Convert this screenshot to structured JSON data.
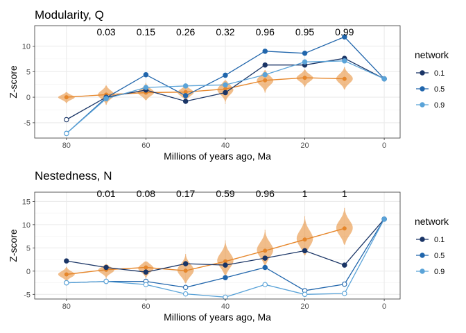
{
  "chart_data": [
    {
      "type": "line",
      "title": "Modularity, Q",
      "xlabel": "Millions of years ago, Ma",
      "ylabel": "Z-score",
      "xlim": [
        88,
        -4
      ],
      "ylim": [
        -8,
        14
      ],
      "xticks": [
        80,
        60,
        40,
        20,
        0
      ],
      "yticks": [
        -5,
        0,
        5,
        10
      ],
      "grid": true,
      "legend_position": "right",
      "legend_title": "network",
      "series": [
        {
          "name": "0.1",
          "color": "#1a3566",
          "x": [
            80,
            70,
            60,
            50,
            40,
            30,
            20,
            10,
            0
          ],
          "y": [
            -4.4,
            0.0,
            1.4,
            -0.8,
            0.9,
            6.3,
            6.3,
            7.6,
            3.6
          ],
          "hollow": [
            true,
            false,
            false,
            false,
            false,
            false,
            false,
            false,
            false
          ]
        },
        {
          "name": "0.5",
          "color": "#2166ac",
          "x": [
            80,
            70,
            60,
            50,
            40,
            30,
            20,
            10,
            0
          ],
          "y": [
            -7.1,
            -0.1,
            4.4,
            0.3,
            4.3,
            9.0,
            8.6,
            11.8,
            3.6
          ],
          "hollow": [
            true,
            false,
            false,
            false,
            false,
            false,
            false,
            false,
            false
          ]
        },
        {
          "name": "0.9",
          "color": "#5aa3d8",
          "x": [
            80,
            70,
            60,
            50,
            40,
            30,
            20,
            10,
            0
          ],
          "y": [
            -7.1,
            -0.3,
            1.9,
            2.2,
            2.4,
            4.4,
            6.9,
            7.1,
            3.6
          ],
          "hollow": [
            true,
            false,
            false,
            false,
            false,
            false,
            false,
            false,
            false
          ]
        }
      ],
      "null_model": {
        "color": "#e6862a",
        "x": [
          80,
          70,
          60,
          50,
          40,
          30,
          20,
          10
        ],
        "median": [
          0.0,
          0.5,
          0.9,
          1.0,
          1.6,
          3.3,
          3.8,
          3.6
        ],
        "min": [
          -1.2,
          -1.5,
          -0.6,
          -1.0,
          -1.3,
          0.9,
          2.0,
          1.5
        ],
        "max": [
          1.0,
          2.3,
          2.8,
          2.3,
          3.3,
          5.3,
          5.4,
          5.9
        ]
      },
      "annotations": {
        "x": [
          70,
          60,
          50,
          40,
          30,
          20,
          10
        ],
        "labels": [
          "0.03",
          "0.15",
          "0.26",
          "0.32",
          "0.96",
          "0.95",
          "0.99"
        ]
      }
    },
    {
      "type": "line",
      "title": "Nestedness, N",
      "xlabel": "Millions of years ago, Ma",
      "ylabel": "Z-score",
      "xlim": [
        88,
        -4
      ],
      "ylim": [
        -6,
        17
      ],
      "xticks": [
        80,
        60,
        40,
        20,
        0
      ],
      "yticks": [
        -5,
        0,
        5,
        10,
        15
      ],
      "grid": true,
      "legend_position": "right",
      "legend_title": "network",
      "series": [
        {
          "name": "0.1",
          "color": "#1a3566",
          "x": [
            80,
            70,
            60,
            50,
            40,
            30,
            20,
            10,
            0
          ],
          "y": [
            2.2,
            0.8,
            -0.2,
            1.6,
            1.3,
            2.8,
            4.4,
            1.3,
            11.2
          ],
          "hollow": [
            false,
            false,
            false,
            false,
            false,
            false,
            false,
            false,
            false
          ]
        },
        {
          "name": "0.5",
          "color": "#2166ac",
          "x": [
            80,
            70,
            60,
            50,
            40,
            30,
            20,
            10,
            0
          ],
          "y": [
            -2.5,
            -2.2,
            -2.2,
            -3.5,
            -1.4,
            0.8,
            -4.2,
            -2.8,
            11.2
          ],
          "hollow": [
            true,
            true,
            true,
            true,
            false,
            false,
            true,
            true,
            false
          ]
        },
        {
          "name": "0.9",
          "color": "#5aa3d8",
          "x": [
            80,
            70,
            60,
            50,
            40,
            30,
            20,
            10,
            0
          ],
          "y": [
            -2.5,
            -2.2,
            -2.9,
            -4.9,
            -5.6,
            -2.9,
            -5.0,
            -4.8,
            11.2
          ],
          "hollow": [
            true,
            true,
            true,
            true,
            true,
            true,
            true,
            true,
            false
          ]
        }
      ],
      "null_model": {
        "color": "#e6862a",
        "x": [
          80,
          70,
          60,
          50,
          40,
          30,
          20,
          10
        ],
        "median": [
          -0.7,
          0.3,
          0.8,
          0.1,
          2.1,
          4.4,
          6.8,
          9.2
        ],
        "min": [
          -2.2,
          -1.7,
          -2.0,
          -2.6,
          -0.9,
          1.2,
          3.4,
          5.7
        ],
        "max": [
          0.9,
          1.5,
          2.1,
          3.7,
          6.6,
          8.9,
          11.8,
          13.6
        ]
      },
      "annotations": {
        "x": [
          70,
          60,
          50,
          40,
          30,
          20,
          10
        ],
        "labels": [
          "0.01",
          "0.08",
          "0.17",
          "0.59",
          "0.96",
          "1",
          "1"
        ]
      }
    }
  ]
}
